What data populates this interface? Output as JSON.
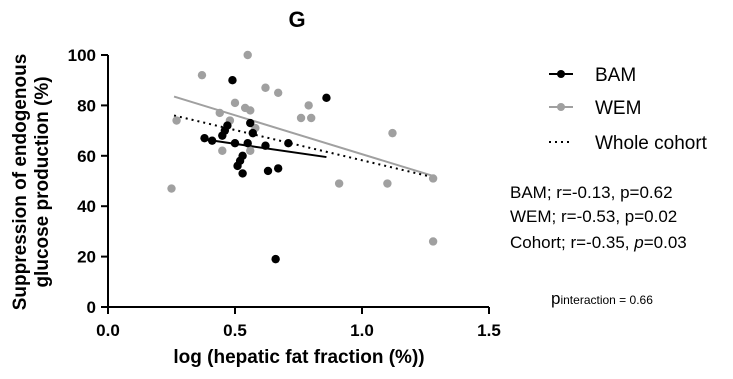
{
  "chart_data": {
    "type": "scatter",
    "title": "G",
    "xlabel": "log (hepatic fat fraction (%))",
    "ylabel_line1": "Suppression of endogenous",
    "ylabel_line2": "glucose production (%)",
    "xlim": [
      0.0,
      1.5
    ],
    "ylim": [
      0,
      100
    ],
    "xticks": [
      "0.0",
      "0.5",
      "1.0",
      "1.5"
    ],
    "yticks": [
      "0",
      "20",
      "40",
      "60",
      "80",
      "100"
    ],
    "xtick_values": [
      0.0,
      0.5,
      1.0,
      1.5
    ],
    "ytick_values": [
      0,
      20,
      40,
      60,
      80,
      100
    ],
    "grid": false,
    "legend_position": "right",
    "series": [
      {
        "name": "BAM",
        "color": "#000000",
        "points": [
          [
            0.38,
            67
          ],
          [
            0.41,
            66
          ],
          [
            0.45,
            68
          ],
          [
            0.46,
            70
          ],
          [
            0.47,
            72
          ],
          [
            0.49,
            90
          ],
          [
            0.5,
            65
          ],
          [
            0.51,
            56
          ],
          [
            0.52,
            58
          ],
          [
            0.53,
            53
          ],
          [
            0.53,
            60
          ],
          [
            0.55,
            65
          ],
          [
            0.56,
            73
          ],
          [
            0.57,
            69
          ],
          [
            0.62,
            64
          ],
          [
            0.63,
            54
          ],
          [
            0.66,
            19
          ],
          [
            0.67,
            55
          ],
          [
            0.71,
            65
          ],
          [
            0.86,
            83
          ]
        ],
        "fit": [
          [
            0.38,
            66.5
          ],
          [
            0.86,
            59.5
          ]
        ]
      },
      {
        "name": "WEM",
        "color": "#a0a0a0",
        "points": [
          [
            0.25,
            47
          ],
          [
            0.27,
            74
          ],
          [
            0.37,
            92
          ],
          [
            0.44,
            77
          ],
          [
            0.45,
            62
          ],
          [
            0.48,
            74
          ],
          [
            0.5,
            81
          ],
          [
            0.54,
            79
          ],
          [
            0.55,
            100
          ],
          [
            0.56,
            78
          ],
          [
            0.56,
            62
          ],
          [
            0.58,
            71
          ],
          [
            0.62,
            87
          ],
          [
            0.67,
            85
          ],
          [
            0.76,
            75
          ],
          [
            0.79,
            80
          ],
          [
            0.8,
            75
          ],
          [
            0.91,
            49
          ],
          [
            1.1,
            49
          ],
          [
            1.12,
            69
          ],
          [
            1.28,
            51
          ],
          [
            1.28,
            26
          ]
        ],
        "fit": [
          [
            0.26,
            83.5
          ],
          [
            1.28,
            52
          ]
        ]
      },
      {
        "name": "Whole cohort",
        "color": "#000000",
        "dashed": true,
        "fit": [
          [
            0.26,
            76
          ],
          [
            1.28,
            51.5
          ]
        ]
      }
    ],
    "stats": [
      "BAM; r=-0.13, p=0.62",
      "WEM; r=-0.53, p=0.02"
    ],
    "cohort_stat": {
      "prefix": "Cohort; r=-0.35, ",
      "italic": "p",
      "suffix": "=0.03"
    },
    "interaction": {
      "p": "p",
      "sub": "interaction",
      "value": " = 0.66"
    }
  }
}
